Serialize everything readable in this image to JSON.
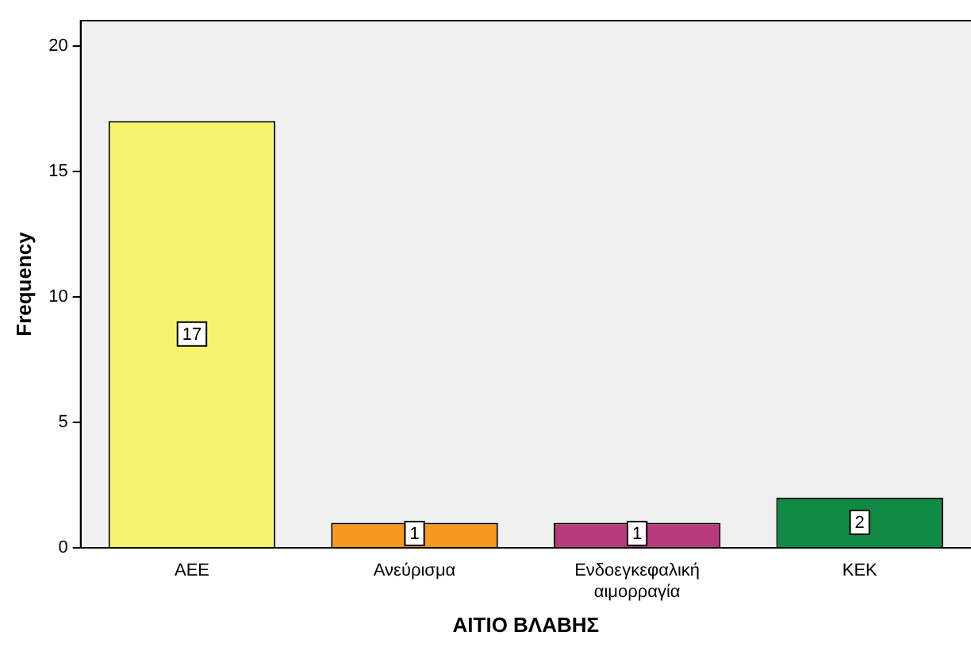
{
  "chart_data": {
    "type": "bar",
    "categories": [
      "ΑΕΕ",
      "Ανεύρισμα",
      "Ενδοεγκεφαλική αιμορραγία",
      "ΚΕΚ"
    ],
    "values": [
      17,
      1,
      1,
      2
    ],
    "colors": [
      "#f7f570",
      "#f7991e",
      "#b83b7e",
      "#0e8a45"
    ],
    "xlabel": "ΑΙΤΙΟ ΒΛΑΒΗΣ",
    "ylabel": "Frequency",
    "ylim": [
      0,
      21
    ],
    "yticks": [
      0,
      5,
      10,
      15,
      20
    ],
    "grid": false,
    "legend": false,
    "data_labels": true
  }
}
